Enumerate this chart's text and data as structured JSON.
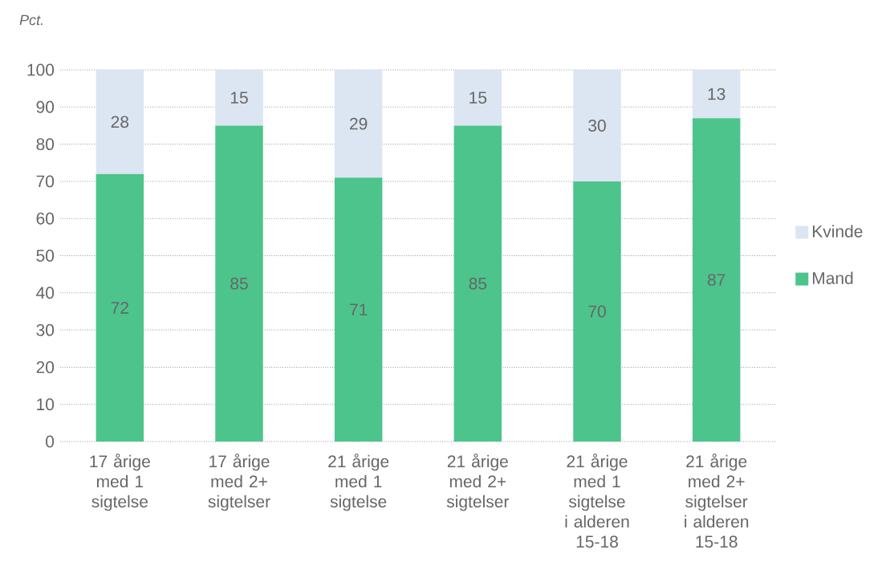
{
  "chart_data": {
    "type": "bar",
    "ylabel": "Pct.",
    "categories": [
      "17 årige med 1 sigtelse",
      "17 årige med 2+ sigtelser",
      "21 årige med 1 sigtelse",
      "21 årige med 2+ sigtelser",
      "21 årige med 1 sigtelse i alderen 15-18",
      "21 årige med 2+ sigtelser i alderen 15-18"
    ],
    "series": [
      {
        "name": "Mand",
        "color": "#4dc48c",
        "values": [
          72,
          85,
          71,
          85,
          70,
          87
        ]
      },
      {
        "name": "Kvinde",
        "color": "#dce5f2",
        "values": [
          28,
          15,
          29,
          15,
          30,
          13
        ]
      }
    ],
    "stacked": true,
    "ylim": [
      0,
      100
    ],
    "yticks": [
      0,
      10,
      20,
      30,
      40,
      50,
      60,
      70,
      80,
      90,
      100
    ],
    "data_labels": true,
    "legend": "right",
    "grid": "y"
  }
}
